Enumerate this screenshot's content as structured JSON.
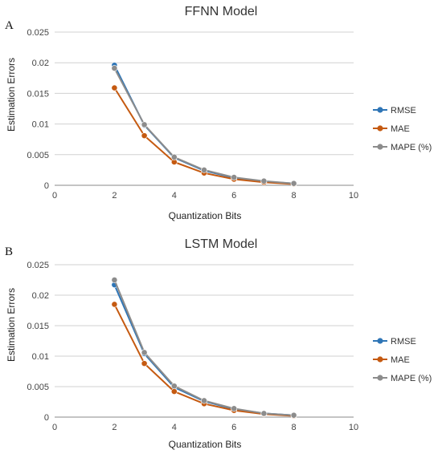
{
  "panels": [
    {
      "letter": "A"
    },
    {
      "letter": "B"
    }
  ],
  "chart_data": [
    {
      "type": "scatter",
      "title": "FFNN Model",
      "xlabel": "Quantization Bits",
      "ylabel": "Estimation Errors",
      "xlim": [
        0,
        10
      ],
      "ylim": [
        0,
        0.025
      ],
      "xticks": [
        0,
        2,
        4,
        6,
        8,
        10
      ],
      "xtick_labels": [
        "0",
        "2",
        "4",
        "6",
        "8",
        "10"
      ],
      "yticks": [
        0,
        0.005,
        0.01,
        0.015,
        0.02,
        0.025
      ],
      "ytick_labels": [
        "0",
        "0.005",
        "0.01",
        "0.015",
        "0.02",
        "0.025"
      ],
      "grid": "horizontal",
      "legend_position": "right",
      "x": [
        2,
        3,
        4,
        5,
        6,
        7,
        8
      ],
      "series": [
        {
          "name": "RMSE",
          "color": "#2e75b6",
          "values": [
            0.0196,
            0.0098,
            0.0045,
            0.0024,
            0.0012,
            0.0006,
            0.0003
          ]
        },
        {
          "name": "MAE",
          "color": "#c55a11",
          "values": [
            0.0159,
            0.0081,
            0.0038,
            0.002,
            0.001,
            0.0005,
            0.0002
          ]
        },
        {
          "name": "MAPE (%)",
          "color": "#8c8c8c",
          "values": [
            0.0191,
            0.0099,
            0.0046,
            0.0025,
            0.0013,
            0.0007,
            0.0003
          ]
        }
      ]
    },
    {
      "type": "scatter",
      "title": "LSTM Model",
      "xlabel": "Quantization Bits",
      "ylabel": "Estimation Errors",
      "xlim": [
        0,
        10
      ],
      "ylim": [
        0,
        0.025
      ],
      "xticks": [
        0,
        2,
        4,
        6,
        8,
        10
      ],
      "xtick_labels": [
        "0",
        "2",
        "4",
        "6",
        "8",
        "10"
      ],
      "yticks": [
        0,
        0.005,
        0.01,
        0.015,
        0.02,
        0.025
      ],
      "ytick_labels": [
        "0",
        "0.005",
        "0.01",
        "0.015",
        "0.02",
        "0.025"
      ],
      "grid": "horizontal",
      "legend_position": "right",
      "x": [
        2,
        3,
        4,
        5,
        6,
        7,
        8
      ],
      "series": [
        {
          "name": "RMSE",
          "color": "#2e75b6",
          "values": [
            0.0217,
            0.0104,
            0.0049,
            0.0026,
            0.0013,
            0.0006,
            0.0003
          ]
        },
        {
          "name": "MAE",
          "color": "#c55a11",
          "values": [
            0.0185,
            0.0088,
            0.0042,
            0.0022,
            0.0011,
            0.0005,
            0.0002
          ]
        },
        {
          "name": "MAPE (%)",
          "color": "#8c8c8c",
          "values": [
            0.0225,
            0.0106,
            0.0051,
            0.0027,
            0.0014,
            0.0006,
            0.0003
          ]
        }
      ]
    }
  ]
}
